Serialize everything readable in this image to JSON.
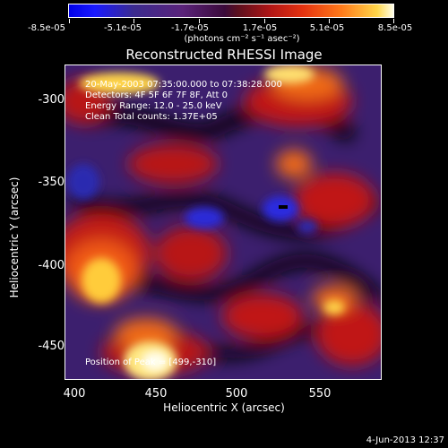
{
  "colorbar": {
    "tick_labels": [
      "-8.5e-05",
      "-5.1e-05",
      "-1.7e-05",
      "1.7e-05",
      "5.1e-05",
      "8.5e-05"
    ],
    "units_html": "(photons cm⁻² s⁻¹ asec⁻²)"
  },
  "title": "Reconstructed RHESSI Image",
  "annotations": {
    "time_range": "20-May-2003 07:35:00.000 to 07:38:28.000",
    "detectors": "Detectors: 4F 5F 6F 7F 8F, Att 0",
    "energy": "Energy Range: 12.0 - 25.0 keV",
    "method": "Clean    Total counts: 1.37E+05",
    "peak": "Position of Peak = [499,-310]"
  },
  "axes": {
    "xlabel": "Heliocentric X (arcsec)",
    "ylabel": "Heliocentric Y (arcsec)",
    "x_ticks": [
      "400",
      "450",
      "500",
      "550"
    ],
    "y_ticks": [
      "-300",
      "-350",
      "-400",
      "-450"
    ]
  },
  "timestamp": "4-Jun-2013 12:37",
  "colors": {
    "frame": "#ffffff",
    "background": "#000000"
  }
}
